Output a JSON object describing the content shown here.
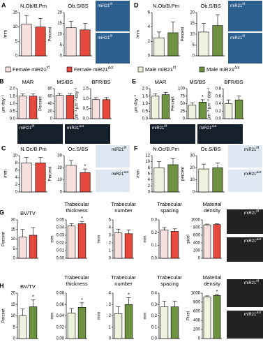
{
  "legends": [
    [
      {
        "label": "Female miR21",
        "sup": "f/f",
        "color": "#f7e1df"
      },
      {
        "label": "Female miR21",
        "sup": "Δot",
        "color": "#e8493f"
      }
    ],
    [
      {
        "label": "Male miR21",
        "sup": "f/f",
        "color": "#eef3df"
      },
      {
        "label": "Male miR21",
        "sup": "Δot",
        "color": "#6e9240"
      }
    ]
  ],
  "image_label": {
    "base": "miR21",
    "sups": [
      "f/f",
      "Δot"
    ]
  },
  "chart_data": [
    {
      "type": "bar",
      "panel": "A",
      "title": "N.Ob/B.Pm",
      "ylabel": "/mm",
      "categories": [
        null,
        null
      ],
      "values": [
        11,
        10
      ],
      "errors": [
        3,
        3
      ],
      "colors": [
        "#f7e1df",
        "#e8493f"
      ],
      "ylim": [
        0,
        15
      ],
      "yticks": [
        0,
        5,
        10,
        15
      ]
    },
    {
      "type": "bar",
      "title": "Ob.S/BS",
      "ylabel": "Percent",
      "categories": [
        null,
        null
      ],
      "values": [
        13,
        12
      ],
      "errors": [
        3,
        3
      ],
      "colors": [
        "#f7e1df",
        "#e8493f"
      ],
      "ylim": [
        0,
        20
      ],
      "yticks": [
        0,
        5,
        10,
        15,
        20
      ]
    },
    {
      "type": "bar",
      "panel": "D",
      "title": "N.Ob/B.Pm",
      "ylabel": "/mm",
      "categories": [
        null,
        null
      ],
      "values": [
        2.5,
        3.2
      ],
      "errors": [
        0.8,
        1.5
      ],
      "colors": [
        "#eef3df",
        "#6e9240"
      ],
      "ylim": [
        0,
        6
      ],
      "yticks": [
        0,
        2,
        4,
        6
      ]
    },
    {
      "type": "bar",
      "title": "Ob.S/BS",
      "ylabel": "Percent",
      "categories": [
        null,
        null
      ],
      "values": [
        11,
        14
      ],
      "errors": [
        4,
        5
      ],
      "colors": [
        "#eef3df",
        "#6e9240"
      ],
      "ylim": [
        0,
        20
      ],
      "yticks": [
        0,
        5,
        10,
        15,
        20
      ]
    },
    {
      "type": "bar",
      "panel": "B",
      "title": "MAR",
      "ylabel": "µm·day⁻¹",
      "categories": [
        null,
        null
      ],
      "values": [
        1.5,
        1.5
      ],
      "errors": [
        0.15,
        0.15
      ],
      "colors": [
        "#f7e1df",
        "#e8493f"
      ],
      "ylim": [
        0,
        2
      ],
      "yticks": [
        {
          "value": 0,
          "label": "0.0"
        },
        {
          "value": 0.5,
          "label": "0.5"
        },
        {
          "value": 1,
          "label": "1.0"
        },
        {
          "value": 1.5,
          "label": "1.5"
        },
        {
          "value": 2,
          "label": "2.0"
        }
      ]
    },
    {
      "type": "bar",
      "title": "MS/BS",
      "ylabel": "Percent",
      "categories": [
        null,
        null
      ],
      "values": [
        62,
        62
      ],
      "errors": [
        5,
        5
      ],
      "colors": [
        "#f7e1df",
        "#e8493f"
      ],
      "ylim": [
        0,
        80
      ],
      "yticks": [
        0,
        20,
        40,
        60,
        80
      ]
    },
    {
      "type": "bar",
      "title": "BFR/BS",
      "ylabel": "µm⁻³·µm⁻²·day⁻¹",
      "categories": [
        null,
        null
      ],
      "values": [
        0.95,
        0.95
      ],
      "errors": [
        0.1,
        0.1
      ],
      "colors": [
        "#f7e1df",
        "#e8493f"
      ],
      "ylim": [
        0,
        1.5
      ],
      "yticks": [
        {
          "value": 0,
          "label": "0.0"
        },
        {
          "value": 0.5,
          "label": "0.5"
        },
        {
          "value": 1,
          "label": "1.0"
        },
        {
          "value": 1.5,
          "label": "1.5"
        }
      ]
    },
    {
      "type": "bar",
      "panel": "E",
      "title": "MAR",
      "ylabel": "µm·day⁻¹",
      "categories": [
        null,
        null
      ],
      "values": [
        1.5,
        1.6
      ],
      "errors": [
        0.15,
        0.15
      ],
      "colors": [
        "#eef3df",
        "#6e9240"
      ],
      "ylim": [
        0,
        2
      ],
      "yticks": [
        {
          "value": 0,
          "label": "0.0"
        },
        {
          "value": 0.5,
          "label": "0.5"
        },
        {
          "value": 1,
          "label": "1.0"
        },
        {
          "value": 1.5,
          "label": "1.5"
        },
        {
          "value": 2,
          "label": "2.0"
        }
      ]
    },
    {
      "type": "bar",
      "title": "MS/BS",
      "ylabel": "Percent",
      "categories": [
        null,
        null
      ],
      "values": [
        45,
        55
      ],
      "errors": [
        8,
        8
      ],
      "stars": [
        null,
        "*"
      ],
      "colors": [
        "#eef3df",
        "#6e9240"
      ],
      "ylim": [
        0,
        100
      ],
      "yticks": [
        0,
        25,
        50,
        75,
        100
      ]
    },
    {
      "type": "bar",
      "title": "BFR/BS",
      "ylabel": "µm⁻³·µm⁻²·day⁻¹",
      "categories": [
        null,
        null
      ],
      "values": [
        0.4,
        0.5
      ],
      "errors": [
        0.1,
        0.1
      ],
      "colors": [
        "#eef3df",
        "#6e9240"
      ],
      "ylim": [
        0,
        0.8
      ],
      "yticks": [
        {
          "value": 0,
          "label": "0.0"
        },
        0.2,
        0.4,
        0.6,
        0.8
      ]
    },
    {
      "type": "bar",
      "panel": "C",
      "title": "N.Oc/B.Pm",
      "ylabel": "/mm",
      "categories": [
        null,
        null
      ],
      "values": [
        8,
        8
      ],
      "errors": [
        1.5,
        1.5
      ],
      "colors": [
        "#f7e1df",
        "#e8493f"
      ],
      "ylim": [
        0,
        10
      ],
      "yticks": [
        0,
        2,
        4,
        6,
        8,
        10
      ]
    },
    {
      "type": "bar",
      "title": "Oc.S/BS",
      "ylabel": "Percent",
      "categories": [
        null,
        null
      ],
      "values": [
        22,
        16
      ],
      "errors": [
        4,
        3
      ],
      "stars": [
        null,
        "*"
      ],
      "colors": [
        "#f7e1df",
        "#e8493f"
      ],
      "ylim": [
        0,
        30
      ],
      "yticks": [
        0,
        10,
        20,
        30
      ]
    },
    {
      "type": "bar",
      "panel": "F",
      "title": "N.Oc/B.Pm",
      "ylabel": "/mm",
      "categories": [
        null,
        null
      ],
      "values": [
        8,
        9
      ],
      "errors": [
        2,
        2
      ],
      "colors": [
        "#eef3df",
        "#6e9240"
      ],
      "ylim": [
        0,
        12
      ],
      "yticks": [
        0,
        2,
        4,
        6,
        8,
        10,
        12
      ]
    },
    {
      "type": "bar",
      "title": "Oc.S/BS",
      "ylabel": "percent",
      "categories": [
        null,
        null
      ],
      "values": [
        19,
        20
      ],
      "errors": [
        4,
        4
      ],
      "colors": [
        "#eef3df",
        "#6e9240"
      ],
      "ylim": [
        0,
        30
      ],
      "yticks": [
        0,
        10,
        20,
        30
      ]
    },
    {
      "type": "bar",
      "panel": "G",
      "title": "BV/TV",
      "ylabel": "Percent",
      "categories": [
        null,
        null
      ],
      "values": [
        11,
        12
      ],
      "errors": [
        4,
        4
      ],
      "colors": [
        "#f7e1df",
        "#e8493f"
      ],
      "ylim": [
        0,
        20
      ],
      "yticks": [
        0,
        5,
        10,
        15,
        20
      ]
    },
    {
      "type": "bar",
      "title": "Trabecular thickness",
      "ylabel": "mm",
      "categories": [
        null,
        null
      ],
      "values": [
        0.042,
        0.045
      ],
      "errors": [
        0.003,
        0.003
      ],
      "stars": [
        null,
        "*"
      ],
      "colors": [
        "#f7e1df",
        "#e8493f"
      ],
      "ylim": [
        0,
        0.05
      ],
      "yticks": [
        {
          "value": 0,
          "label": "0.00"
        },
        0.01,
        0.02,
        0.03,
        0.04,
        0.05
      ]
    },
    {
      "type": "bar",
      "title": "Trabecular number",
      "ylabel": "/mm",
      "categories": [
        null,
        null
      ],
      "values": [
        3.3,
        3.2
      ],
      "errors": [
        0.5,
        0.5
      ],
      "colors": [
        "#f7e1df",
        "#e8493f"
      ],
      "ylim": [
        0,
        5
      ],
      "yticks": [
        0,
        1,
        2,
        3,
        4,
        5
      ]
    },
    {
      "type": "bar",
      "title": "Trabecular spacing",
      "ylabel": "mm",
      "categories": [
        null,
        null
      ],
      "values": [
        0.22,
        0.21
      ],
      "errors": [
        0.02,
        0.02
      ],
      "colors": [
        "#f7e1df",
        "#e8493f"
      ],
      "ylim": [
        0,
        0.3
      ],
      "yticks": [
        {
          "value": 0,
          "label": "0.0"
        },
        0.1,
        0.2,
        0.3
      ]
    },
    {
      "type": "bar",
      "title": "Material density",
      "ylabel": "pixel",
      "categories": [
        null,
        null
      ],
      "values": [
        870,
        880
      ],
      "errors": [
        20,
        20
      ],
      "colors": [
        "#f7e1df",
        "#e8493f"
      ],
      "ylim": [
        0,
        1000
      ],
      "yticks": [
        0,
        200,
        400,
        600,
        800,
        1000
      ]
    },
    {
      "type": "bar",
      "panel": "H",
      "title": "BV/TV",
      "ylabel": "Percent",
      "categories": [
        null,
        null
      ],
      "values": [
        10,
        14
      ],
      "errors": [
        3,
        3
      ],
      "stars": [
        null,
        "*"
      ],
      "colors": [
        "#eef3df",
        "#6e9240"
      ],
      "ylim": [
        0,
        20
      ],
      "yticks": [
        0,
        5,
        10,
        15,
        20
      ]
    },
    {
      "type": "bar",
      "title": "Trabecular thickness",
      "ylabel": "mm",
      "categories": [
        null,
        null
      ],
      "values": [
        0.045,
        0.055
      ],
      "errors": [
        0.008,
        0.008
      ],
      "stars": [
        null,
        "*"
      ],
      "colors": [
        "#eef3df",
        "#6e9240"
      ],
      "ylim": [
        0,
        0.08
      ],
      "yticks": [
        {
          "value": 0,
          "label": "0.00"
        },
        0.02,
        0.04,
        0.06,
        0.08
      ]
    },
    {
      "type": "bar",
      "title": "Trabecular number",
      "ylabel": "/mm",
      "categories": [
        null,
        null
      ],
      "values": [
        2.2,
        3
      ],
      "errors": [
        0.6,
        0.6
      ],
      "stars": [
        null,
        "*"
      ],
      "colors": [
        "#eef3df",
        "#6e9240"
      ],
      "ylim": [
        0,
        4
      ],
      "yticks": [
        0,
        1,
        2,
        3,
        4
      ]
    },
    {
      "type": "bar",
      "title": "Trabecular spacing",
      "ylabel": "mm",
      "categories": [
        null,
        null
      ],
      "values": [
        0.28,
        0.28
      ],
      "errors": [
        0.05,
        0.05
      ],
      "colors": [
        "#eef3df",
        "#6e9240"
      ],
      "ylim": [
        0,
        0.4
      ],
      "yticks": [
        {
          "value": 0,
          "label": "0.0"
        },
        0.1,
        0.2,
        0.3,
        0.4
      ]
    },
    {
      "type": "bar",
      "title": "Material density",
      "ylabel": "Pixel",
      "categories": [
        null,
        null
      ],
      "values": [
        920,
        950
      ],
      "errors": [
        20,
        20
      ],
      "stars": [
        null,
        "*"
      ],
      "colors": [
        "#eef3df",
        "#6e9240"
      ],
      "ylim": [
        0,
        1000
      ],
      "yticks": [
        0,
        200,
        400,
        600,
        800,
        1000
      ]
    }
  ]
}
